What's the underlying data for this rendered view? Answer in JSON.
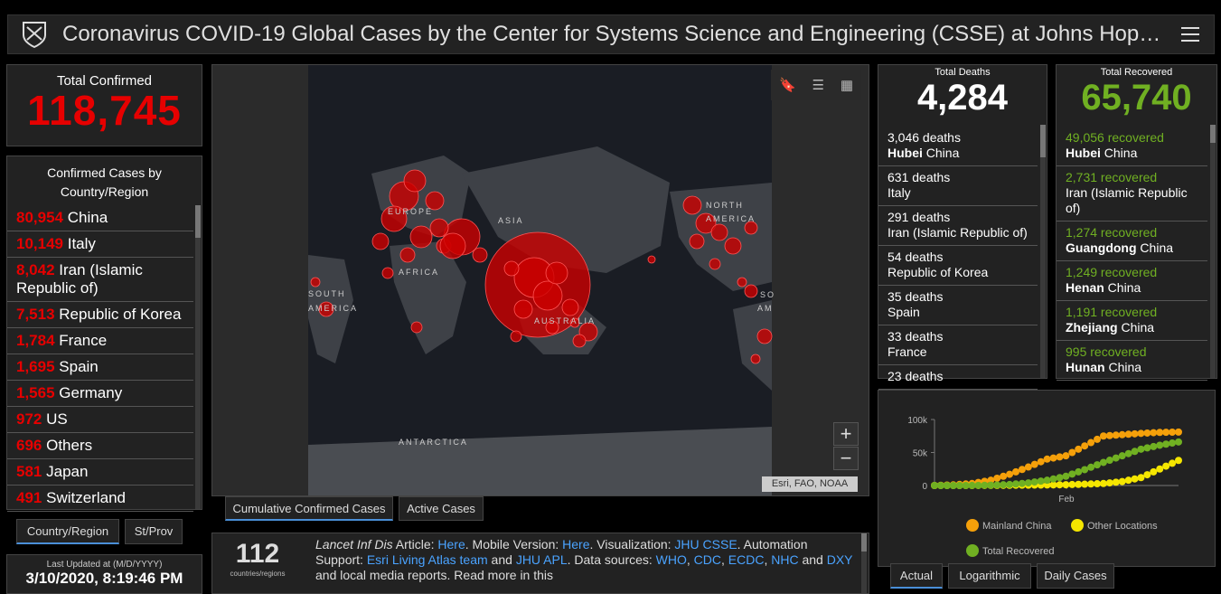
{
  "header": {
    "title": "Coronavirus COVID-19 Global Cases by the Center for Systems Science and Engineering (CSSE) at Johns Hop…"
  },
  "total_confirmed": {
    "label": "Total Confirmed",
    "value": "118,745"
  },
  "country_list": {
    "header_line1": "Confirmed Cases by",
    "header_line2": "Country/Region",
    "items": [
      {
        "num": "80,954",
        "name": "China"
      },
      {
        "num": "10,149",
        "name": "Italy"
      },
      {
        "num": "8,042",
        "name": "Iran (Islamic Republic of)"
      },
      {
        "num": "7,513",
        "name": "Republic of Korea"
      },
      {
        "num": "1,784",
        "name": "France"
      },
      {
        "num": "1,695",
        "name": "Spain"
      },
      {
        "num": "1,565",
        "name": "Germany"
      },
      {
        "num": "972",
        "name": "US"
      },
      {
        "num": "696",
        "name": "Others"
      },
      {
        "num": "581",
        "name": "Japan"
      },
      {
        "num": "491",
        "name": "Switzerland"
      }
    ]
  },
  "list_tabs": {
    "country": "Country/Region",
    "state": "St/Prov"
  },
  "last_updated": {
    "label": "Last Updated at (M/D/YYYY)",
    "value": "3/10/2020, 8:19:46 PM"
  },
  "map": {
    "labels": {
      "europe": "EUROPE",
      "asia": "ASIA",
      "africa": "AFRICA",
      "south_america_1": "SOUTH",
      "south_america_2": "AMERICA",
      "north_america_1": "NORTH",
      "north_america_2": "AMERICA",
      "australia": "AUSTRALIA",
      "antarctica": "ANTARCTICA",
      "south_am_right": "SO",
      "am_right": "AM"
    },
    "zoom_in": "+",
    "zoom_out": "−",
    "attribution": "Esri, FAO, NOAA",
    "tabs": {
      "cumulative": "Cumulative Confirmed Cases",
      "active": "Active Cases"
    }
  },
  "info": {
    "count": "112",
    "count_label": "countries/regions",
    "t1": "Lancet Inf Dis",
    "t2": " Article: ",
    "l1": "Here",
    "t3": ". Mobile Version: ",
    "l2": "Here",
    "t4": ". Visualization: ",
    "l3": "JHU CSSE",
    "t5": ". Automation Support: ",
    "l4": "Esri Living Atlas team",
    "t6": " and ",
    "l5": "JHU APL",
    "t7": ". Data sources: ",
    "l6": "WHO",
    "t8": ", ",
    "l7": "CDC",
    "t9": ", ",
    "l8": "ECDC",
    "t10": ", ",
    "l9": "NHC",
    "t11": " and ",
    "l10": "DXY",
    "t12": " and local media reports. Read more in this"
  },
  "deaths": {
    "label": "Total Deaths",
    "value": "4,284",
    "items": [
      {
        "num": "3,046 deaths",
        "bold": "Hubei",
        "rest": " China"
      },
      {
        "num": "631 deaths",
        "bold": "",
        "rest": " Italy"
      },
      {
        "num": "291 deaths",
        "bold": "",
        "rest": " Iran (Islamic Republic of)"
      },
      {
        "num": "54 deaths",
        "bold": "",
        "rest": " Republic of Korea"
      },
      {
        "num": "35 deaths",
        "bold": "",
        "rest": " Spain"
      },
      {
        "num": "33 deaths",
        "bold": "",
        "rest": " France"
      },
      {
        "num": "23 deaths",
        "bold": "",
        "rest": ""
      }
    ]
  },
  "recovered": {
    "label": "Total Recovered",
    "value": "65,740",
    "items": [
      {
        "num": "49,056 recovered",
        "bold": "Hubei",
        "rest": " China"
      },
      {
        "num": "2,731 recovered",
        "bold": "",
        "rest": " Iran (Islamic Republic of)"
      },
      {
        "num": "1,274 recovered",
        "bold": "Guangdong",
        "rest": " China"
      },
      {
        "num": "1,249 recovered",
        "bold": "Henan",
        "rest": " China"
      },
      {
        "num": "1,191 recovered",
        "bold": "Zhejiang",
        "rest": " China"
      },
      {
        "num": "995 recovered",
        "bold": "Hunan",
        "rest": " China"
      }
    ]
  },
  "chart_data": {
    "type": "line",
    "yticks": [
      "100k",
      "50k",
      "0"
    ],
    "xtick": "Feb",
    "ylim": [
      0,
      100000
    ],
    "series": [
      {
        "name": "Mainland China",
        "color": "#f5a00a",
        "values": [
          0,
          1000,
          3000,
          8000,
          17000,
          28000,
          40000,
          45000,
          60000,
          75000,
          77000,
          79000,
          80500,
          81000
        ]
      },
      {
        "name": "Other Locations",
        "color": "#f5e600",
        "values": [
          0,
          0,
          0,
          100,
          300,
          500,
          800,
          1200,
          2000,
          3000,
          6000,
          12000,
          25000,
          38000
        ]
      },
      {
        "name": "Total Recovered",
        "color": "#70b022",
        "values": [
          0,
          0,
          100,
          500,
          1500,
          4000,
          8000,
          14000,
          24000,
          35000,
          45000,
          55000,
          61000,
          66000
        ]
      }
    ]
  },
  "chart_tabs": {
    "actual": "Actual",
    "log": "Logarithmic",
    "daily": "Daily Cases"
  },
  "colors": {
    "confirmed": "#e60000",
    "recovered": "#70b022",
    "link": "#4aa3ff"
  }
}
